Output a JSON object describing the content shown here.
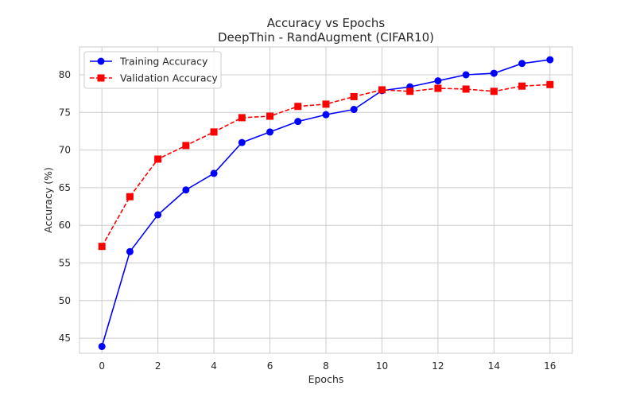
{
  "chart_data": {
    "type": "line",
    "title": "Accuracy vs Epochs",
    "subtitle": "DeepThin - RandAugment (CIFAR10)",
    "xlabel": "Epochs",
    "ylabel": "Accuracy (%)",
    "xlim": [
      -0.8,
      16.8
    ],
    "ylim": [
      43.0,
      83.7
    ],
    "xticks": [
      0,
      2,
      4,
      6,
      8,
      10,
      12,
      14,
      16
    ],
    "yticks": [
      45,
      50,
      55,
      60,
      65,
      70,
      75,
      80
    ],
    "grid": true,
    "legend_position": "top-left",
    "x": [
      0,
      1,
      2,
      3,
      4,
      5,
      6,
      7,
      8,
      9,
      10,
      11,
      12,
      13,
      14,
      15,
      16
    ],
    "series": [
      {
        "name": "Training Accuracy",
        "color": "#0000ff",
        "line_style": "solid",
        "marker": "circle",
        "values": [
          43.9,
          56.5,
          61.4,
          64.7,
          66.9,
          71.0,
          72.4,
          73.8,
          74.7,
          75.4,
          77.9,
          78.4,
          79.2,
          80.0,
          80.2,
          81.5,
          82.0
        ]
      },
      {
        "name": "Validation Accuracy",
        "color": "#ff0000",
        "line_style": "dashed",
        "marker": "square",
        "values": [
          57.2,
          63.8,
          68.8,
          70.6,
          72.4,
          74.3,
          74.5,
          75.8,
          76.1,
          77.1,
          78.0,
          77.8,
          78.2,
          78.1,
          77.8,
          78.5,
          78.7
        ]
      }
    ]
  }
}
